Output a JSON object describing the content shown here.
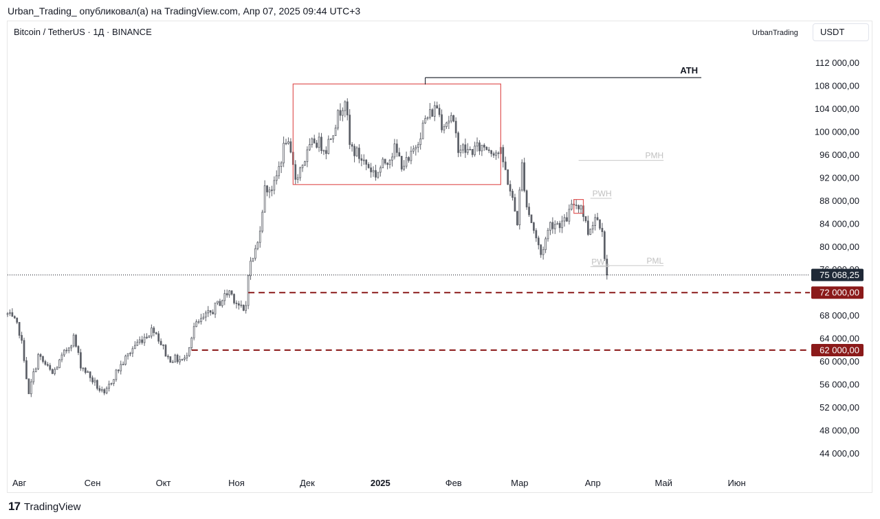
{
  "header": {
    "publish_line": "Urban_Trading_ опубликовал(а) на TradingView.com, Апр 07, 2025 09:44 UTC+3"
  },
  "symbol": {
    "title": "Bitcoin / TetherUS · 1Д · BINANCE",
    "author_tag": "UrbanTrading",
    "currency": "USDT"
  },
  "footer": {
    "brand": "TradingView"
  },
  "colors": {
    "candle": "#5b5e66",
    "box": "#e05656",
    "level": "#8b1a1a",
    "last_price_bg": "#1f2937",
    "ath_line": "#131722",
    "faint_line": "#c8c8c8"
  },
  "chart_data": {
    "type": "candlestick",
    "title": "Bitcoin / TetherUS · 1Д · BINANCE",
    "y_ticks": [
      {
        "value": 112000,
        "label": "112 000,00"
      },
      {
        "value": 108000,
        "label": "108 000,00"
      },
      {
        "value": 104000,
        "label": "104 000,00"
      },
      {
        "value": 100000,
        "label": "100 000,00"
      },
      {
        "value": 96000,
        "label": "96 000,00"
      },
      {
        "value": 92000,
        "label": "92 000,00"
      },
      {
        "value": 88000,
        "label": "88 000,00"
      },
      {
        "value": 84000,
        "label": "84 000,00"
      },
      {
        "value": 80000,
        "label": "80 000,00"
      },
      {
        "value": 76000,
        "label": "76 000,00"
      },
      {
        "value": 68000,
        "label": "68 000,00"
      },
      {
        "value": 64000,
        "label": "64 000,00"
      },
      {
        "value": 60000,
        "label": "60 000,00"
      },
      {
        "value": 56000,
        "label": "56 000,00"
      },
      {
        "value": 52000,
        "label": "52 000,00"
      },
      {
        "value": 48000,
        "label": "48 000,00"
      },
      {
        "value": 44000,
        "label": "44 000,00"
      }
    ],
    "x_ticks": [
      {
        "date": "2024-08-01",
        "label": "Авг",
        "bold": false
      },
      {
        "date": "2024-09-01",
        "label": "Сен",
        "bold": false
      },
      {
        "date": "2024-10-01",
        "label": "Окт",
        "bold": false
      },
      {
        "date": "2024-11-01",
        "label": "Ноя",
        "bold": false
      },
      {
        "date": "2024-12-01",
        "label": "Дек",
        "bold": false
      },
      {
        "date": "2025-01-01",
        "label": "2025",
        "bold": true
      },
      {
        "date": "2025-02-01",
        "label": "Фев",
        "bold": false
      },
      {
        "date": "2025-03-01",
        "label": "Мар",
        "bold": false
      },
      {
        "date": "2025-04-01",
        "label": "Апр",
        "bold": false
      },
      {
        "date": "2025-05-01",
        "label": "Май",
        "bold": false
      },
      {
        "date": "2025-06-01",
        "label": "Июн",
        "bold": false
      }
    ],
    "x_range": [
      "2024-07-27",
      "2025-07-02"
    ],
    "y_range": [
      40500,
      115500
    ],
    "last_price": {
      "value": 75068.25,
      "label": "75 068,25"
    },
    "levels": [
      {
        "value": 72000,
        "label": "72 000,00",
        "start": "2024-11-06"
      },
      {
        "value": 62000,
        "label": "62 000,00",
        "start": "2024-10-13"
      }
    ],
    "anchors": [
      {
        "date": "2024-07-27",
        "close": 68200
      },
      {
        "date": "2024-07-30",
        "close": 66800
      },
      {
        "date": "2024-08-01",
        "close": 65300
      },
      {
        "date": "2024-08-03",
        "close": 60800
      },
      {
        "date": "2024-08-05",
        "close": 54000
      },
      {
        "date": "2024-08-06",
        "close": 56200
      },
      {
        "date": "2024-08-09",
        "close": 61000
      },
      {
        "date": "2024-08-15",
        "close": 57800
      },
      {
        "date": "2024-08-24",
        "close": 64200
      },
      {
        "date": "2024-08-27",
        "close": 59500
      },
      {
        "date": "2024-09-06",
        "close": 54000
      },
      {
        "date": "2024-09-10",
        "close": 57500
      },
      {
        "date": "2024-09-19",
        "close": 62900
      },
      {
        "date": "2024-09-27",
        "close": 65800
      },
      {
        "date": "2024-10-03",
        "close": 60600
      },
      {
        "date": "2024-10-10",
        "close": 60200
      },
      {
        "date": "2024-10-14",
        "close": 66000
      },
      {
        "date": "2024-10-21",
        "close": 68500
      },
      {
        "date": "2024-10-29",
        "close": 72300
      },
      {
        "date": "2024-11-04",
        "close": 68500
      },
      {
        "date": "2024-11-05",
        "close": 69800
      },
      {
        "date": "2024-11-06",
        "close": 75800
      },
      {
        "date": "2024-11-10",
        "close": 80500
      },
      {
        "date": "2024-11-13",
        "close": 90000
      },
      {
        "date": "2024-11-17",
        "close": 90500
      },
      {
        "date": "2024-11-22",
        "close": 98800
      },
      {
        "date": "2024-11-26",
        "close": 92000
      },
      {
        "date": "2024-12-04",
        "close": 98500
      },
      {
        "date": "2024-12-09",
        "close": 97200
      },
      {
        "date": "2024-12-17",
        "close": 106000
      },
      {
        "date": "2024-12-19",
        "close": 97500
      },
      {
        "date": "2024-12-30",
        "close": 92600
      },
      {
        "date": "2025-01-07",
        "close": 96900
      },
      {
        "date": "2025-01-10",
        "close": 94500
      },
      {
        "date": "2025-01-13",
        "close": 94600
      },
      {
        "date": "2025-01-20",
        "close": 102000
      },
      {
        "date": "2025-01-25",
        "close": 104500
      },
      {
        "date": "2025-01-27",
        "close": 101500
      },
      {
        "date": "2025-01-31",
        "close": 102400
      },
      {
        "date": "2025-02-03",
        "close": 97500
      },
      {
        "date": "2025-02-07",
        "close": 96500
      },
      {
        "date": "2025-02-14",
        "close": 97500
      },
      {
        "date": "2025-02-21",
        "close": 96200
      },
      {
        "date": "2025-02-24",
        "close": 91500
      },
      {
        "date": "2025-02-28",
        "close": 84400
      },
      {
        "date": "2025-03-02",
        "close": 94200
      },
      {
        "date": "2025-03-04",
        "close": 87200
      },
      {
        "date": "2025-03-10",
        "close": 78600
      },
      {
        "date": "2025-03-14",
        "close": 84000
      },
      {
        "date": "2025-03-20",
        "close": 84200
      },
      {
        "date": "2025-03-24",
        "close": 87500
      },
      {
        "date": "2025-03-27",
        "close": 87200
      },
      {
        "date": "2025-03-30",
        "close": 82500
      },
      {
        "date": "2025-04-02",
        "close": 85300
      },
      {
        "date": "2025-04-05",
        "close": 83500
      },
      {
        "date": "2025-04-06",
        "close": 78400
      },
      {
        "date": "2025-04-07",
        "close": 75068
      }
    ],
    "annotations": {
      "ath": {
        "label": "ATH",
        "value": 109400,
        "start": "2025-01-20",
        "end": "2025-05-17"
      },
      "range_box": {
        "start": "2024-11-25",
        "end": "2025-02-21",
        "high": 108300,
        "low": 90800
      },
      "small_box": {
        "start": "2025-03-24",
        "end": "2025-03-28",
        "high": 88200,
        "low": 85800
      },
      "pmh": {
        "label": "PMH",
        "value": 95000,
        "start": "2025-03-26",
        "end": "2025-05-01"
      },
      "pwh": {
        "label": "PWH",
        "value": 88400,
        "start": "2025-03-31",
        "end": "2025-04-09"
      },
      "pwl": {
        "label": "PWL",
        "value": 76500,
        "start": "2025-03-31",
        "end": "2025-04-08"
      },
      "pml": {
        "label": "PML",
        "value": 76700,
        "start": "2025-04-01",
        "end": "2025-05-01"
      }
    }
  }
}
